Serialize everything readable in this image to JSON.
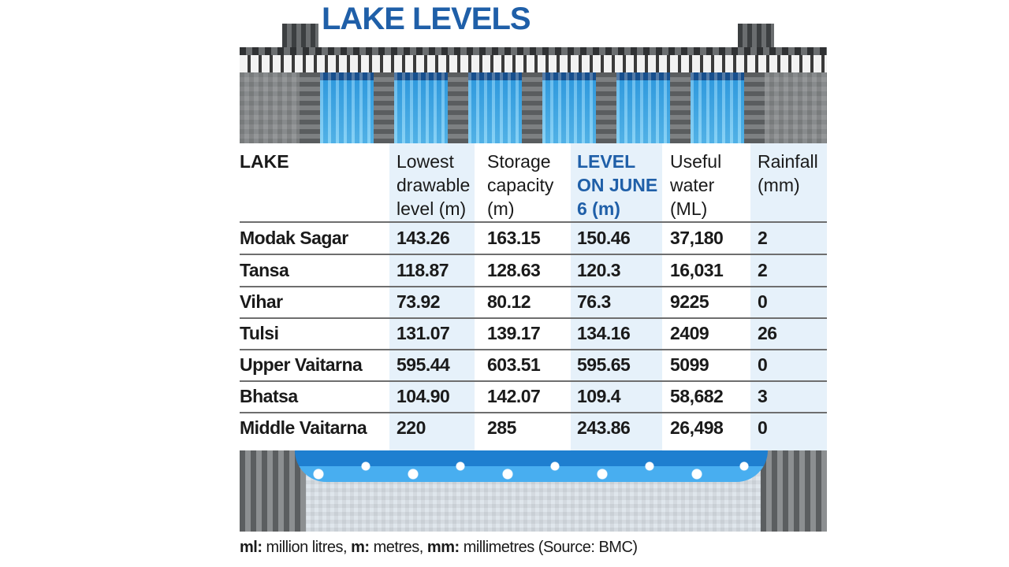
{
  "title": "LAKE LEVELS",
  "headers": {
    "lake": [
      "LAKE"
    ],
    "lowest": [
      "Lowest",
      "drawable",
      "level (m)"
    ],
    "storage": [
      "Storage",
      "capacity",
      "(m)"
    ],
    "level": [
      "LEVEL",
      "ON JUNE",
      "6 (m)"
    ],
    "useful": [
      "Useful",
      "water",
      "(ML)"
    ],
    "rainfall": [
      "Rainfall",
      "(mm)"
    ]
  },
  "rows": [
    {
      "lake": "Modak Sagar",
      "lowest": "143.26",
      "storage": "163.15",
      "level": "150.46",
      "useful": "37,180",
      "rainfall": "2"
    },
    {
      "lake": "Tansa",
      "lowest": "118.87",
      "storage": "128.63",
      "level": "120.3",
      "useful": "16,031",
      "rainfall": "2"
    },
    {
      "lake": "Vihar",
      "lowest": "73.92",
      "storage": "80.12",
      "level": "76.3",
      "useful": "9225",
      "rainfall": "0"
    },
    {
      "lake": "Tulsi",
      "lowest": "131.07",
      "storage": "139.17",
      "level": "134.16",
      "useful": "2409",
      "rainfall": "26"
    },
    {
      "lake": "Upper Vaitarna",
      "lowest": "595.44",
      "storage": "603.51",
      "level": "595.65",
      "useful": "5099",
      "rainfall": "0"
    },
    {
      "lake": "Bhatsa",
      "lowest": "104.90",
      "storage": "142.07",
      "level": "109.4",
      "useful": "58,682",
      "rainfall": "3"
    },
    {
      "lake": "Middle Vaitarna",
      "lowest": "220",
      "storage": "285",
      "level": "243.86",
      "useful": "26,498",
      "rainfall": "0"
    }
  ],
  "footnote": {
    "ml_key": "ml:",
    "ml_val": " million litres,",
    "m_key": "m:",
    "m_val": " metres,",
    "mm_key": "mm:",
    "mm_val": " millimetres (Source: BMC)"
  },
  "colors": {
    "title": "#1f5fa8",
    "highlight_column": "#e6f1fa"
  }
}
